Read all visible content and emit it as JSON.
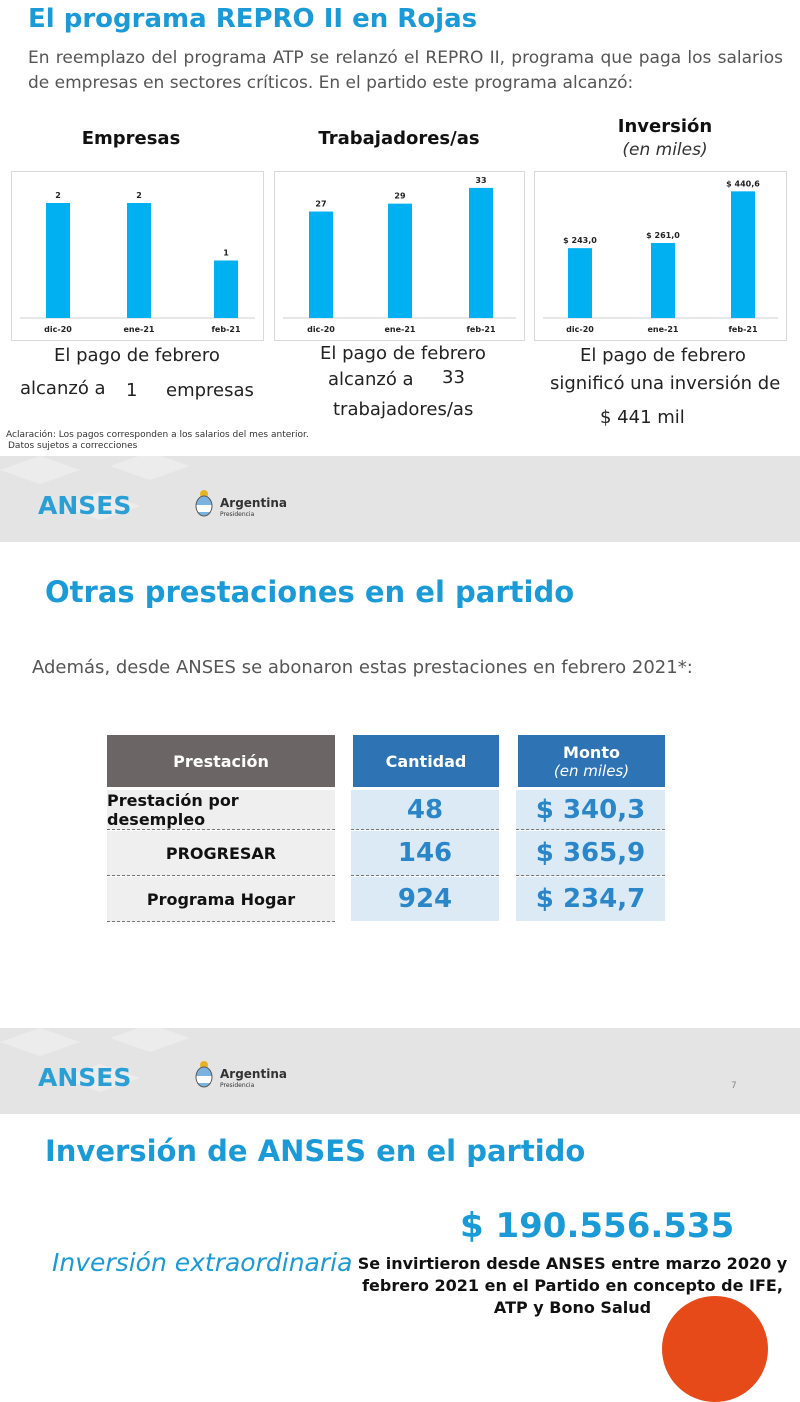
{
  "section1": {
    "title": "El programa REPRO II en Rojas",
    "intro": "En reemplazo del programa ATP se relanzó el REPRO II, programa que paga los salarios de empresas en sectores críticos. En el partido este programa alcanzó:",
    "charts": [
      {
        "title": "Empresas",
        "subtitle": ""
      },
      {
        "title": "Trabajadores/as",
        "subtitle": ""
      },
      {
        "title": "Inversión",
        "subtitle": "(en miles)"
      }
    ],
    "captions": {
      "empresas_line1": "El pago de febrero",
      "empresas_line2a": "alcanzó a",
      "empresas_value": "1",
      "empresas_line2b": "empresas",
      "trab_line1": "El pago de febrero",
      "trab_line2a": "alcanzó a",
      "trab_value": "33",
      "trab_line3": "trabajadores/as",
      "inv_line1": "El pago de febrero",
      "inv_line2": "significó una inversión de",
      "inv_value": "$ 441 mil"
    },
    "note_line1": "Aclaración: Los pagos corresponden a los salarios del mes anterior.",
    "note_line2": "Datos sujetos a correcciones"
  },
  "footer_band": {
    "brand": "ANSES",
    "gov": "Argentina",
    "gov_sub": "Presidencia",
    "page_number": "7"
  },
  "section2": {
    "title": "Otras prestaciones en el partido",
    "intro": "Además, desde ANSES se abonaron estas prestaciones en febrero 2021*:",
    "headers": {
      "prestacion": "Prestación",
      "cantidad": "Cantidad",
      "monto": "Monto",
      "monto_sub": "(en miles)"
    },
    "rows": [
      {
        "label": "Prestación por desempleo",
        "cantidad": "48",
        "monto": "$ 340,3"
      },
      {
        "label": "PROGRESAR",
        "cantidad": "146",
        "monto": "$ 365,9"
      },
      {
        "label": "Programa Hogar",
        "cantidad": "924",
        "monto": "$ 234,7"
      }
    ],
    "colors": {
      "header_gray": "#6b6665",
      "header_blue": "#2e74b5"
    }
  },
  "section3": {
    "title": "Inversión de ANSES en el partido",
    "amount": "$ 190.556.535",
    "label": "Inversión extraordinaria",
    "desc_line1": "Se invirtieron desde ANSES entre marzo 2020 y",
    "desc_line2": "febrero 2021 en el Partido en concepto de IFE,",
    "desc_line3": "ATP y Bono Salud"
  },
  "chart_data": [
    {
      "type": "bar",
      "categories": [
        "dic-20",
        "ene-21",
        "feb-21"
      ],
      "values": [
        2,
        2,
        1
      ],
      "labels": [
        "2",
        "2",
        "1"
      ],
      "title": "Empresas",
      "ylim": [
        0,
        2.4
      ],
      "grid": false,
      "color": "#00b0f0"
    },
    {
      "type": "bar",
      "categories": [
        "dic-20",
        "ene-21",
        "feb-21"
      ],
      "values": [
        27,
        29,
        33
      ],
      "labels": [
        "27",
        "29",
        "33"
      ],
      "title": "Trabajadores/as",
      "ylim": [
        0,
        35
      ],
      "grid": false,
      "color": "#00b0f0"
    },
    {
      "type": "bar",
      "categories": [
        "dic-20",
        "ene-21",
        "feb-21"
      ],
      "values": [
        243.0,
        261.0,
        440.6
      ],
      "labels": [
        "$ 243,0",
        "$ 261,0",
        "$ 440,6"
      ],
      "title": "Inversión",
      "subtitle": "(en miles)",
      "ylim": [
        0,
        480
      ],
      "grid": false,
      "color": "#00b0f0"
    }
  ]
}
